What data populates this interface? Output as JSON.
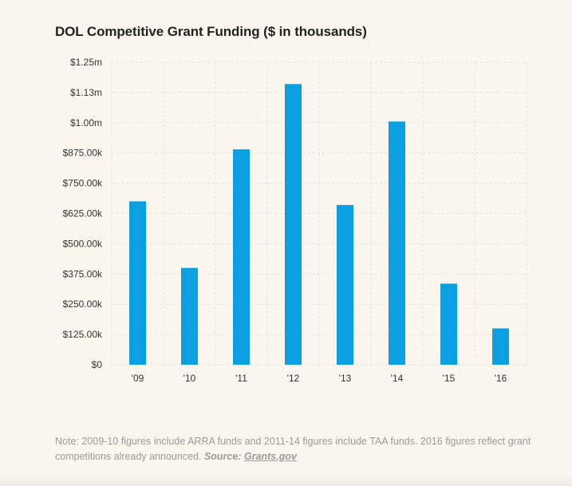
{
  "chart_data": {
    "type": "bar",
    "title": "DOL Competitive Grant Funding ($ in thousands)",
    "categories": [
      "'09",
      "'10",
      "'11",
      "'12",
      "'13",
      "'14",
      "'15",
      "'16"
    ],
    "values": [
      675,
      400,
      890,
      1160,
      660,
      1005,
      335,
      150
    ],
    "y_ticks": [
      {
        "value": 0,
        "label": "$0"
      },
      {
        "value": 125,
        "label": "$125.00k"
      },
      {
        "value": 250,
        "label": "$250.00k"
      },
      {
        "value": 375,
        "label": "$375.00k"
      },
      {
        "value": 500,
        "label": "$500.00k"
      },
      {
        "value": 625,
        "label": "$625.00k"
      },
      {
        "value": 750,
        "label": "$750.00k"
      },
      {
        "value": 875,
        "label": "$875.00k"
      },
      {
        "value": 1000,
        "label": "$1.00m"
      },
      {
        "value": 1125,
        "label": "$1.13m"
      },
      {
        "value": 1250,
        "label": "$1.25m"
      }
    ],
    "ylim": [
      0,
      1250
    ],
    "xlabel": "",
    "ylabel": "",
    "grid": true,
    "bar_color": "#0a9fe0"
  },
  "note": {
    "text": "Note: 2009-10 figures include ARRA funds and 2011-14 figures include TAA funds. 2016 figures reflect grant competitions already announced. ",
    "source_label": "Source:",
    "source_link": "Grants.gov"
  }
}
